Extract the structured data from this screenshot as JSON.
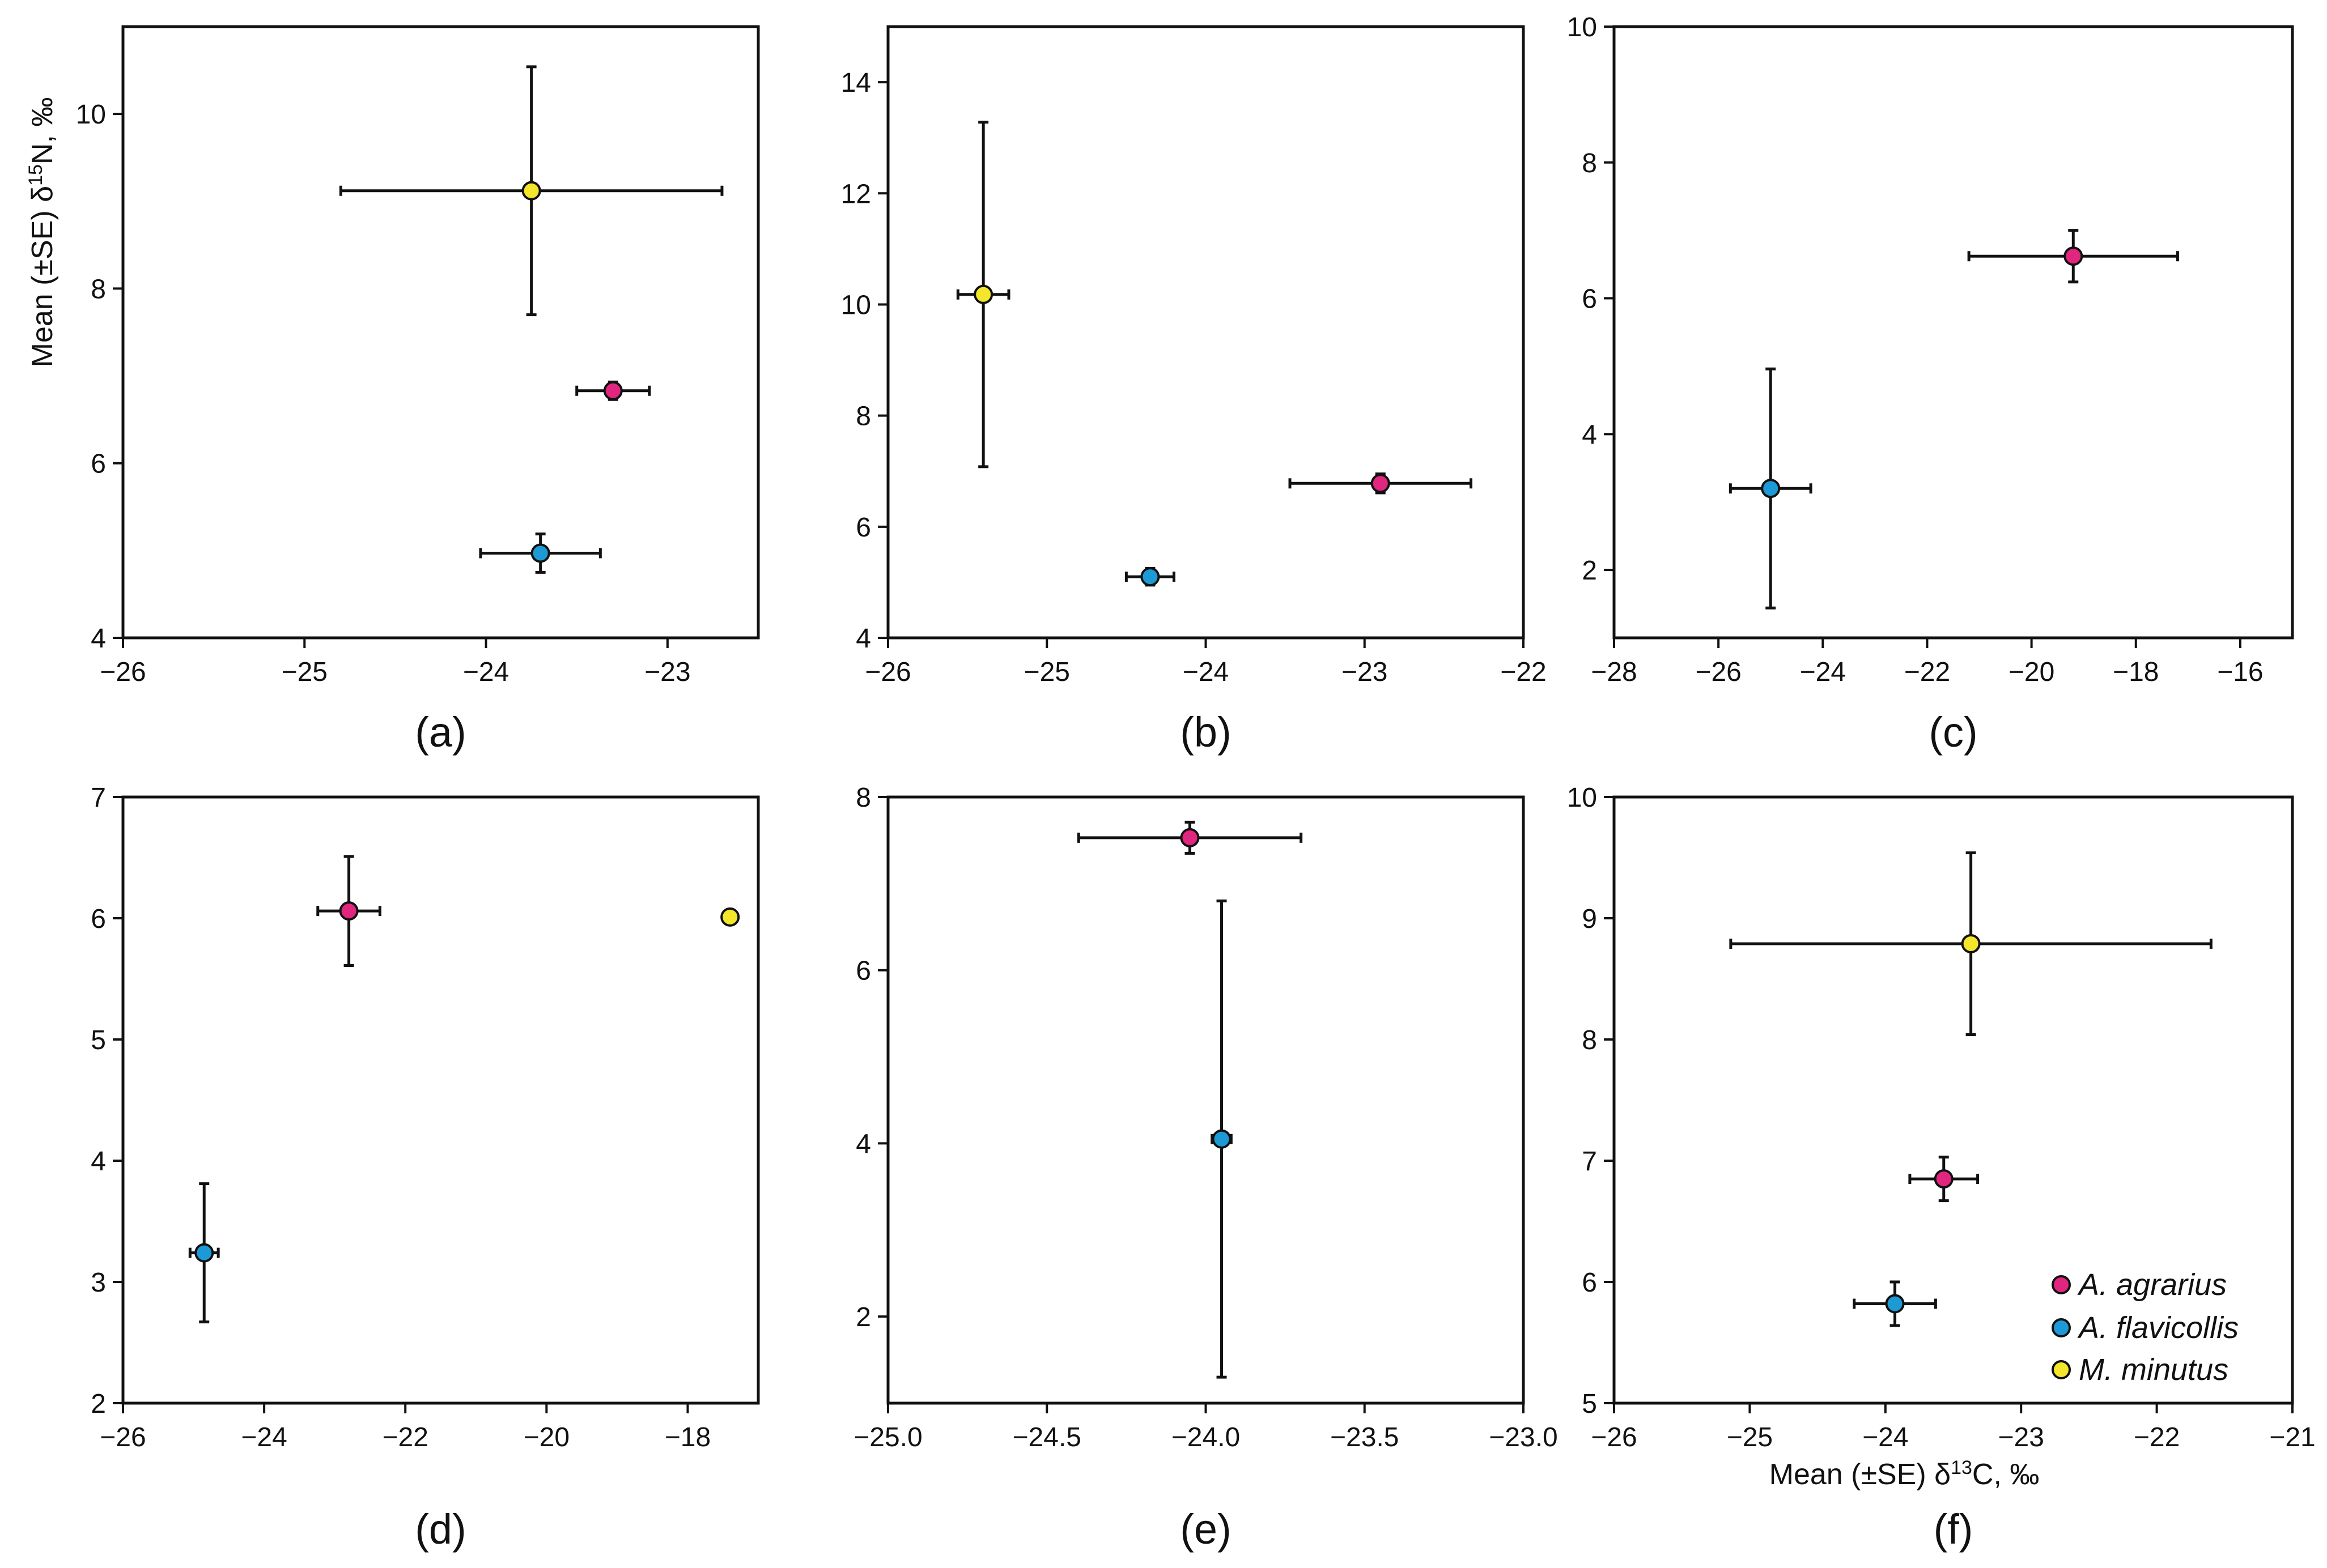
{
  "figure": {
    "y_axis_title": {
      "prefix": "Mean (±SE) δ",
      "superscript": "15",
      "suffix": "N,  ‰"
    },
    "x_axis_title": {
      "prefix": "Mean (±SE) δ",
      "superscript": "13",
      "suffix": "C,  ‰"
    }
  },
  "legend": {
    "entries": [
      {
        "label": "A. agrarius",
        "color": "#e0267f"
      },
      {
        "label": "A. flavicollis",
        "color": "#1d9ad6"
      },
      {
        "label": "M. minutus",
        "color": "#f3e62b"
      }
    ]
  },
  "chart_data": [
    {
      "panel": "(a)",
      "type": "scatter",
      "xlim": [
        -26,
        -22.5
      ],
      "ylim": [
        4,
        11
      ],
      "xticks": [
        -26,
        -25,
        -24,
        -23
      ],
      "xtick_labels": [
        "−26",
        "−25",
        "−24",
        "−23"
      ],
      "yticks": [
        4,
        6,
        8,
        10
      ],
      "ytick_labels": [
        "4",
        "6",
        "8",
        "10"
      ],
      "series": [
        {
          "name": "A. agrarius",
          "color": "#e0267f",
          "x": -23.3,
          "y": 6.83,
          "x_se": 0.2,
          "y_se": 0.1
        },
        {
          "name": "A. flavicollis",
          "color": "#1d9ad6",
          "x": -23.7,
          "y": 4.97,
          "x_se": 0.33,
          "y_se": 0.22
        },
        {
          "name": "M. minutus",
          "color": "#f3e62b",
          "x": -23.75,
          "y": 9.12,
          "x_se": 1.05,
          "y_se": 1.42
        }
      ]
    },
    {
      "panel": "(b)",
      "type": "scatter",
      "xlim": [
        -26,
        -22
      ],
      "ylim": [
        4,
        15
      ],
      "xticks": [
        -26,
        -25,
        -24,
        -23,
        -22
      ],
      "xtick_labels": [
        "−26",
        "−25",
        "−24",
        "−23",
        "−22"
      ],
      "yticks": [
        4,
        6,
        8,
        10,
        12,
        14
      ],
      "ytick_labels": [
        "4",
        "6",
        "8",
        "10",
        "12",
        "14"
      ],
      "series": [
        {
          "name": "A. agrarius",
          "color": "#e0267f",
          "x": -22.9,
          "y": 6.78,
          "x_se": 0.57,
          "y_se": 0.17
        },
        {
          "name": "A. flavicollis",
          "color": "#1d9ad6",
          "x": -24.35,
          "y": 5.1,
          "x_se": 0.15,
          "y_se": 0.15
        },
        {
          "name": "M. minutus",
          "color": "#f3e62b",
          "x": -25.4,
          "y": 10.18,
          "x_se": 0.16,
          "y_se": 3.1
        }
      ]
    },
    {
      "panel": "(c)",
      "type": "scatter",
      "xlim": [
        -28,
        -15
      ],
      "ylim": [
        1,
        10
      ],
      "xticks": [
        -28,
        -26,
        -24,
        -22,
        -20,
        -18,
        -16
      ],
      "xtick_labels": [
        "−28",
        "−26",
        "−24",
        "−22",
        "−20",
        "−18",
        "−16"
      ],
      "yticks": [
        2,
        4,
        6,
        8,
        10
      ],
      "ytick_labels": [
        "2",
        "4",
        "6",
        "8",
        "10"
      ],
      "series": [
        {
          "name": "A. agrarius",
          "color": "#e0267f",
          "x": -19.2,
          "y": 6.62,
          "x_se": 2.0,
          "y_se": 0.38
        },
        {
          "name": "A. flavicollis",
          "color": "#1d9ad6",
          "x": -25.0,
          "y": 3.2,
          "x_se": 0.77,
          "y_se": 1.76
        }
      ]
    },
    {
      "panel": "(d)",
      "type": "scatter",
      "xlim": [
        -26,
        -17
      ],
      "ylim": [
        2,
        7
      ],
      "xticks": [
        -26,
        -24,
        -22,
        -20,
        -18
      ],
      "xtick_labels": [
        "−26",
        "−24",
        "−22",
        "−20",
        "−18"
      ],
      "yticks": [
        2,
        3,
        4,
        5,
        6,
        7
      ],
      "ytick_labels": [
        "2",
        "3",
        "4",
        "5",
        "6",
        "7"
      ],
      "series": [
        {
          "name": "A. agrarius",
          "color": "#e0267f",
          "x": -22.8,
          "y": 6.06,
          "x_se": 0.44,
          "y_se": 0.45
        },
        {
          "name": "A. flavicollis",
          "color": "#1d9ad6",
          "x": -24.85,
          "y": 3.24,
          "x_se": 0.2,
          "y_se": 0.57
        },
        {
          "name": "M. minutus",
          "color": "#f3e62b",
          "x": -17.4,
          "y": 6.01,
          "x_se": 0,
          "y_se": 0
        }
      ]
    },
    {
      "panel": "(e)",
      "type": "scatter",
      "xlim": [
        -25,
        -23
      ],
      "ylim": [
        1,
        8
      ],
      "xticks": [
        -25,
        -24.5,
        -24,
        -23.5,
        -23
      ],
      "xtick_labels": [
        "−25.0",
        "−24.5",
        "−24.0",
        "−23.5",
        "−23.0"
      ],
      "yticks": [
        2,
        4,
        6,
        8
      ],
      "ytick_labels": [
        "2",
        "4",
        "6",
        "8"
      ],
      "series": [
        {
          "name": "A. agrarius",
          "color": "#e0267f",
          "x": -24.05,
          "y": 7.53,
          "x_se": 0.35,
          "y_se": 0.18
        },
        {
          "name": "A. flavicollis",
          "color": "#1d9ad6",
          "x": -23.95,
          "y": 4.05,
          "x_se": 0.03,
          "y_se": 2.75
        }
      ]
    },
    {
      "panel": "(f)",
      "type": "scatter",
      "xlim": [
        -26,
        -21
      ],
      "ylim": [
        5,
        10
      ],
      "xticks": [
        -26,
        -25,
        -24,
        -23,
        -22,
        -21
      ],
      "xtick_labels": [
        "−26",
        "−25",
        "−24",
        "−23",
        "−22",
        "−21"
      ],
      "yticks": [
        5,
        6,
        7,
        8,
        9,
        10
      ],
      "ytick_labels": [
        "5",
        "6",
        "7",
        "8",
        "9",
        "10"
      ],
      "series": [
        {
          "name": "A. agrarius",
          "color": "#e0267f",
          "x": -23.57,
          "y": 6.85,
          "x_se": 0.25,
          "y_se": 0.18
        },
        {
          "name": "A. flavicollis",
          "color": "#1d9ad6",
          "x": -23.93,
          "y": 5.82,
          "x_se": 0.3,
          "y_se": 0.18
        },
        {
          "name": "M. minutus",
          "color": "#f3e62b",
          "x": -23.37,
          "y": 8.79,
          "x_se": 1.77,
          "y_se": 0.75
        }
      ]
    }
  ]
}
